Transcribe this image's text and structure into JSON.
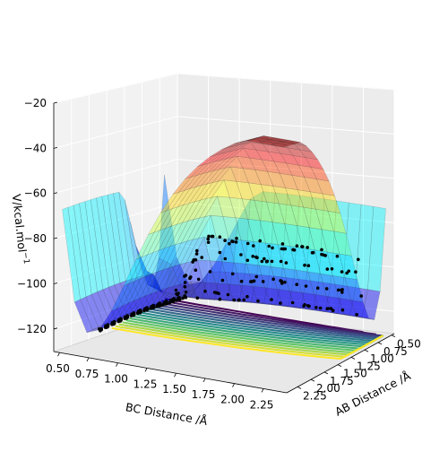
{
  "chart_data": {
    "type": "surface",
    "zlabel": "V/kcal.mol$^{-1}$",
    "zlabel_text": "V/kcal.mol",
    "zlabel_sup": "−1",
    "xlabel": "BC Distance /Å",
    "ylabel": "AB Distance /Å",
    "z_ticks": [
      "−20",
      "−40",
      "−60",
      "−80",
      "−100",
      "−120"
    ],
    "z_values": [
      -20,
      -40,
      -60,
      -80,
      -100,
      -120
    ],
    "x_ticks": [
      "0.50",
      "0.75",
      "1.00",
      "1.25",
      "1.50",
      "1.75",
      "2.00",
      "2.25"
    ],
    "x_values": [
      0.5,
      0.75,
      1.0,
      1.25,
      1.5,
      1.75,
      2.0,
      2.25
    ],
    "y_ticks": [
      "0.50",
      "0.75",
      "1.00",
      "1.25",
      "1.50",
      "1.75",
      "2.00",
      "2.25"
    ],
    "y_values": [
      0.5,
      0.75,
      1.0,
      1.25,
      1.5,
      1.75,
      2.0,
      2.25
    ],
    "zlim": [
      -130,
      -20
    ],
    "colormap_surface": "jet",
    "colormap_contours": "viridis",
    "trajectory_color": "#000000",
    "grid": true
  }
}
